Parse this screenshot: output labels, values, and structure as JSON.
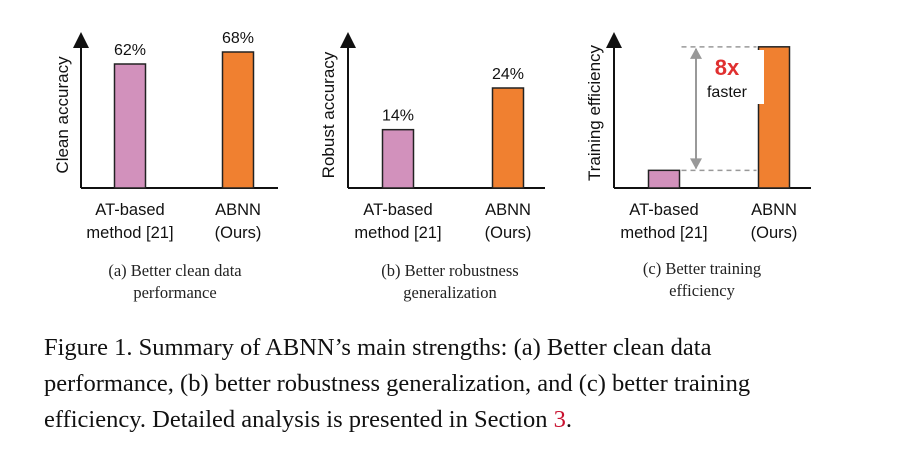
{
  "chart_data": [
    {
      "type": "bar",
      "ylabel": "Clean accuracy",
      "categories": [
        "AT-based\nmethod [21]",
        "ABNN\n(Ours)"
      ],
      "values": [
        62,
        68
      ],
      "value_labels": [
        "62%",
        "68%"
      ],
      "colors": [
        "#d291bc",
        "#f08030"
      ],
      "ylim": [
        0,
        75
      ],
      "grid": false,
      "caption": "(a) Better clean data\nperformance"
    },
    {
      "type": "bar",
      "ylabel": "Robust accuracy",
      "categories": [
        "AT-based\nmethod [21]",
        "ABNN\n(Ours)"
      ],
      "values": [
        14,
        24
      ],
      "value_labels": [
        "14%",
        "24%"
      ],
      "colors": [
        "#d291bc",
        "#f08030"
      ],
      "ylim": [
        0,
        36
      ],
      "grid": false,
      "caption": "(b) Better robustness\ngeneralization"
    },
    {
      "type": "bar",
      "ylabel": "Training efficiency",
      "categories": [
        "AT-based\nmethod [21]",
        "ABNN\n(Ours)"
      ],
      "values": [
        1,
        8
      ],
      "colors": [
        "#d291bc",
        "#f08030"
      ],
      "ylim": [
        0,
        8.5
      ],
      "grid": false,
      "annotation": {
        "value": "8x",
        "text": "faster",
        "value_color": "#e03030"
      },
      "caption": "(c) Better training\nefficiency"
    }
  ],
  "figure_caption": {
    "prefix": "Figure 1. Summary of ABNN’s main strengths: (a) Better clean data performance, (b) better robustness generalization, and (c) better training efficiency. Detailed analysis is presented in Section ",
    "ref": "3",
    "suffix": "."
  }
}
